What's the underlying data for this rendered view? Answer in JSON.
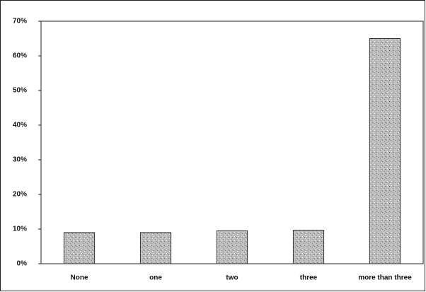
{
  "chart_data": {
    "type": "bar",
    "categories": [
      "None",
      "one",
      "two",
      "three",
      "more than three"
    ],
    "values": [
      9,
      9,
      9.5,
      9.7,
      65
    ],
    "color": "#b5b5b5",
    "ylim": [
      0,
      70
    ],
    "yticks": [
      {
        "value": 0,
        "label": "0%"
      },
      {
        "value": 10,
        "label": "10%"
      },
      {
        "value": 20,
        "label": "20%"
      },
      {
        "value": 30,
        "label": "30%"
      },
      {
        "value": 40,
        "label": "40%"
      },
      {
        "value": 50,
        "label": "50%"
      },
      {
        "value": 60,
        "label": "60%"
      },
      {
        "value": 70,
        "label": "70%"
      }
    ],
    "grid": false
  }
}
